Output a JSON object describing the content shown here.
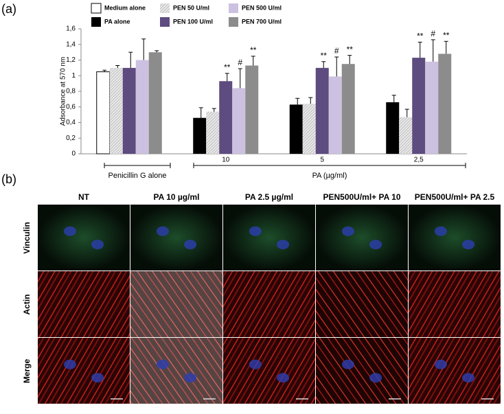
{
  "panel_labels": [
    "(a)",
    "(b)"
  ],
  "chart_data": {
    "type": "bar",
    "y_label": "Adsorbance at 570 nm",
    "categories": [
      "Penicillin G alone",
      "10",
      "5",
      "2,5"
    ],
    "x_group_label": "PA (µg/ml)",
    "ylim": [
      0,
      1.6
    ],
    "yticks": [
      0,
      {
        "value": 0.2,
        "label": "0,2"
      },
      {
        "value": 0.4,
        "label": "0,4"
      },
      {
        "value": 0.6,
        "label": "0,6"
      },
      {
        "value": 0.8,
        "label": "0,8"
      },
      1,
      {
        "value": 1.2,
        "label": "1,2"
      },
      {
        "value": 1.4,
        "label": "1,4"
      },
      {
        "value": 1.6,
        "label": "1,6"
      }
    ],
    "series": [
      {
        "name": "Medium alone",
        "color": "#ffffff",
        "values": [
          1.05,
          null,
          null,
          null
        ],
        "errors": [
          0.02,
          null,
          null,
          null
        ]
      },
      {
        "name": "PA alone",
        "color": "#000000",
        "values": [
          null,
          0.46,
          0.63,
          0.66
        ],
        "errors": [
          null,
          0.13,
          0.08,
          0.09
        ]
      },
      {
        "name": "PEN 50 U/ml",
        "color": "#dcdcdc",
        "hatch": true,
        "values": [
          1.1,
          0.54,
          0.64,
          0.47
        ],
        "errors": [
          0.03,
          0.04,
          0.08,
          0.1
        ]
      },
      {
        "name": "PEN 100 U/ml",
        "color": "#5e4b7f",
        "values": [
          1.1,
          0.93,
          1.1,
          1.23
        ],
        "errors": [
          0.2,
          0.1,
          0.08,
          0.2
        ],
        "annotations": [
          null,
          "**",
          "**",
          "**"
        ]
      },
      {
        "name": "PEN 500 U/ml",
        "color": "#ccc1e0",
        "values": [
          1.2,
          0.84,
          0.99,
          1.18
        ],
        "errors": [
          0.27,
          0.25,
          0.25,
          0.28
        ],
        "annotations": [
          null,
          "#",
          "#",
          "#"
        ]
      },
      {
        "name": "PEN 700 U/ml",
        "color": "#8c8c8c",
        "values": [
          1.3,
          1.13,
          1.15,
          1.28
        ],
        "errors": [
          0.02,
          0.12,
          0.11,
          0.16
        ],
        "annotations": [
          null,
          "**",
          "**",
          "**"
        ]
      }
    ]
  },
  "microscopy": {
    "columns": [
      "NT",
      "PA 10 µg/ml",
      "PA 2.5 µg/ml",
      "PEN500U/ml+ PA 10",
      "PEN500U/ml+ PA 2.5"
    ],
    "rows": [
      "Vinculin",
      "Actin",
      "Merge"
    ]
  }
}
